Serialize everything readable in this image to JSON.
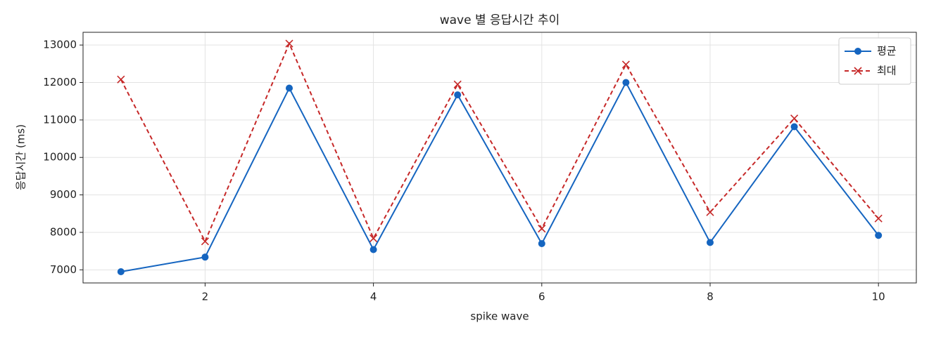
{
  "chart_data": {
    "type": "line",
    "title": "wave 별 응답시간 추이",
    "x_label": "spike wave",
    "y_label": "응답시간 (ms)",
    "x": [
      1,
      2,
      3,
      4,
      5,
      6,
      7,
      8,
      9,
      10
    ],
    "series": [
      {
        "name": "평균",
        "color": "#1565c0",
        "marker": "o",
        "dashed": false,
        "values": [
          6950,
          7340,
          11850,
          7540,
          11670,
          7700,
          12000,
          7730,
          10820,
          7920
        ]
      },
      {
        "name": "최대",
        "color": "#c62828",
        "marker": "x",
        "dashed": true,
        "values": [
          12080,
          7760,
          13040,
          7840,
          11950,
          8100,
          12480,
          8540,
          11040,
          8370
        ]
      }
    ],
    "xlim": [
      0.55,
      10.45
    ],
    "xticks": [
      2,
      4,
      6,
      8,
      10
    ],
    "ylim": [
      6650,
      13340
    ],
    "yticks": [
      7000,
      8000,
      9000,
      10000,
      11000,
      12000,
      13000
    ],
    "grid": true,
    "legend": "upper right"
  }
}
